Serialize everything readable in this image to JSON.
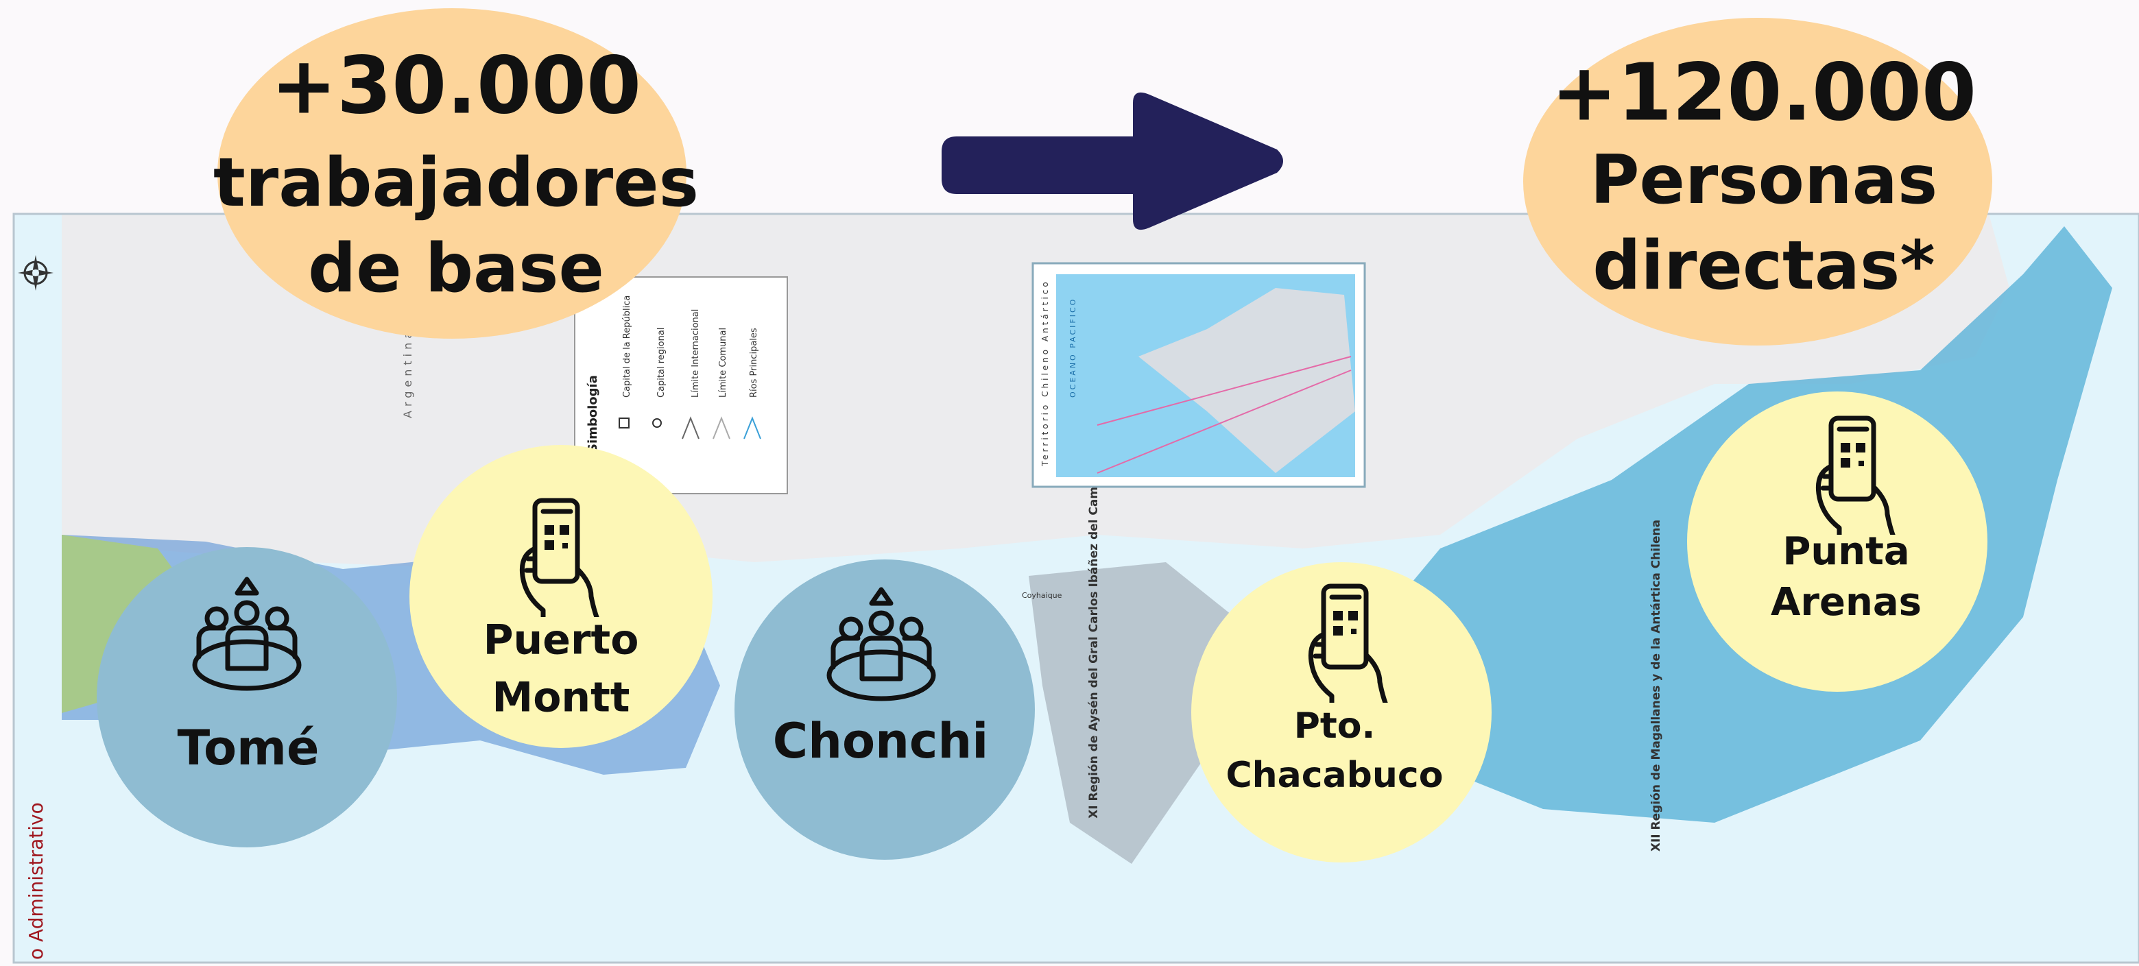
{
  "header": {
    "left": {
      "lines": [
        "+30.000",
        "trabajadores",
        "de base"
      ]
    },
    "right": {
      "lines": [
        "+120.000",
        "Personas",
        "directas*"
      ]
    }
  },
  "locations": [
    {
      "lines": [
        "Tomé"
      ]
    },
    {
      "lines": [
        "Puerto",
        "Montt"
      ]
    },
    {
      "lines": [
        "Chonchi"
      ]
    },
    {
      "lines": [
        "Pto.",
        "Chacabuco"
      ]
    },
    {
      "lines": [
        "Punta",
        "Arenas"
      ]
    }
  ],
  "map": {
    "side_label": "o Administrativo",
    "country": "Argentina",
    "city": "Coyhaique",
    "legend": {
      "title": "Simbología",
      "items": [
        "Capital de la República",
        "Capital regional",
        "Límite Internacional",
        "Límite Comunal",
        "Ríos Principales"
      ]
    },
    "inset_title": "Territorio Chileno Antártico",
    "inset_ocean": "OCEANO PACIFICO",
    "regions": [
      "XI Región de Aysén del Gral Carlos Ibáñez del Campo",
      "XII Región de Magallanes y de la Antártica Chilena"
    ]
  }
}
